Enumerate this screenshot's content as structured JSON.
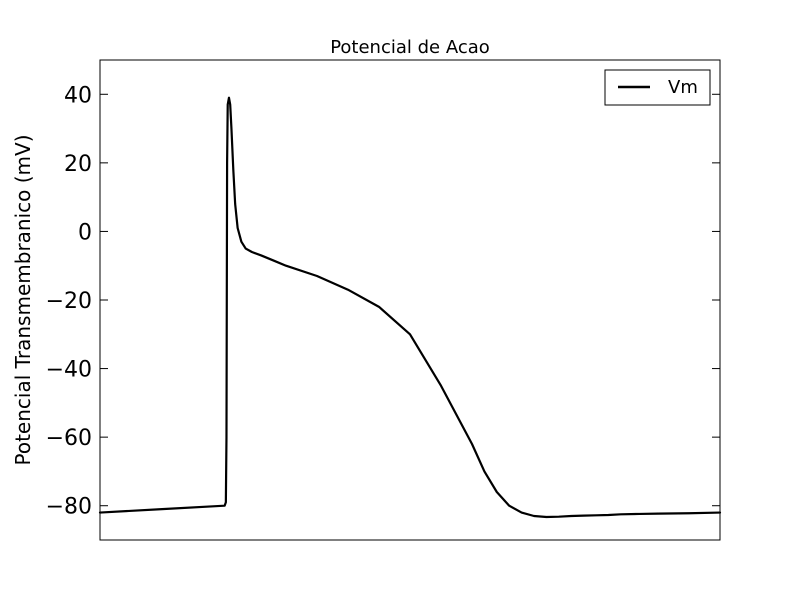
{
  "chart_data": {
    "type": "line",
    "title": "Potencial de Acao",
    "xlabel": "",
    "ylabel": "Potencial Transmembranico (mV)",
    "xlim": [
      0,
      1
    ],
    "ylim": [
      -90,
      50
    ],
    "yticks": [
      40,
      20,
      0,
      -20,
      -40,
      -60,
      -80
    ],
    "ytick_labels": [
      "40",
      "20",
      "0",
      "−20",
      "−40",
      "−60",
      "−80"
    ],
    "xticks_visible": false,
    "grid": false,
    "legend": {
      "position": "top-right",
      "entries": [
        "Vm"
      ]
    },
    "series": [
      {
        "name": "Vm",
        "color": "#000000",
        "x": [
          0.0,
          0.1,
          0.19,
          0.201,
          0.203,
          0.204,
          0.2045,
          0.205,
          0.206,
          0.208,
          0.21,
          0.212,
          0.215,
          0.218,
          0.222,
          0.228,
          0.235,
          0.245,
          0.26,
          0.28,
          0.3,
          0.35,
          0.4,
          0.45,
          0.5,
          0.55,
          0.6,
          0.62,
          0.64,
          0.66,
          0.68,
          0.7,
          0.72,
          0.74,
          0.76,
          0.78,
          0.8,
          0.82,
          0.84,
          0.87,
          0.9,
          0.95,
          1.0
        ],
        "y": [
          -82,
          -81,
          -80.1,
          -80,
          -79,
          -60,
          -20,
          20,
          37,
          39,
          37,
          30,
          18,
          8,
          1,
          -3,
          -5,
          -6,
          -7,
          -8.5,
          -10,
          -13,
          -17,
          -22,
          -30,
          -45,
          -62,
          -70,
          -76,
          -80,
          -82,
          -83,
          -83.3,
          -83.2,
          -83,
          -82.9,
          -82.8,
          -82.7,
          -82.5,
          -82.4,
          -82.3,
          -82.2,
          -82
        ]
      }
    ]
  }
}
